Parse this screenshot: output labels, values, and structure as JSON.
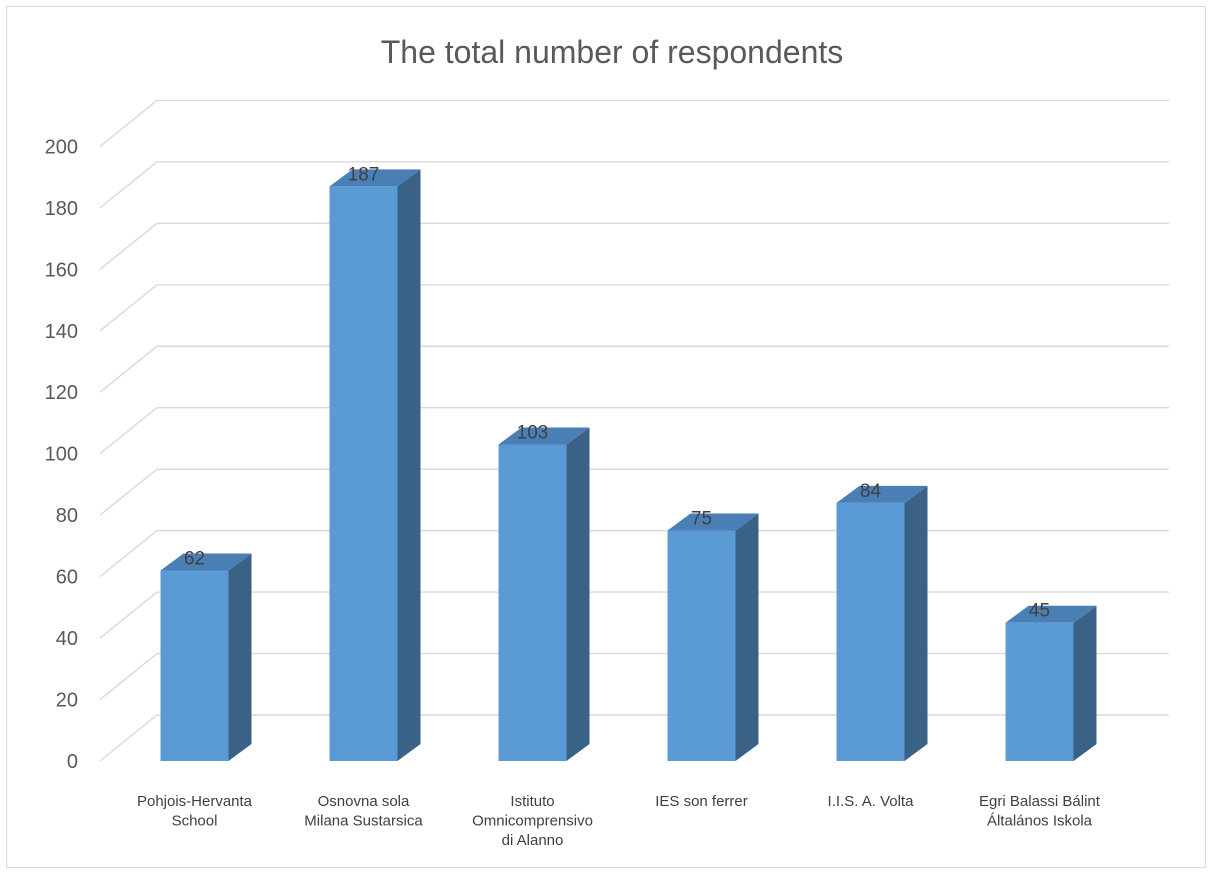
{
  "chart_data": {
    "type": "bar",
    "title": "The total number of respondents",
    "categories": [
      [
        "Pohjois-Hervanta",
        "School"
      ],
      [
        "Osnovna sola",
        "Milana Sustarsica"
      ],
      [
        "Istituto",
        "Omnicomprensivo",
        "di Alanno"
      ],
      [
        "IES son ferrer"
      ],
      [
        "I.I.S. A. Volta"
      ],
      [
        "Egri Balassi Bálint",
        "Általános Iskola"
      ]
    ],
    "values": [
      62,
      187,
      103,
      75,
      84,
      45
    ],
    "ylim": [
      0,
      200
    ],
    "yticks": [
      0,
      20,
      40,
      60,
      80,
      100,
      120,
      140,
      160,
      180,
      200
    ],
    "grid": true,
    "legend": "none",
    "bar_style": "3d",
    "colors": {
      "bar_front": "#5b9bd5",
      "bar_side": "#3a6286",
      "bar_top": "#4a7fb5",
      "grid": "#d9d9d9",
      "text": "#595959"
    }
  }
}
